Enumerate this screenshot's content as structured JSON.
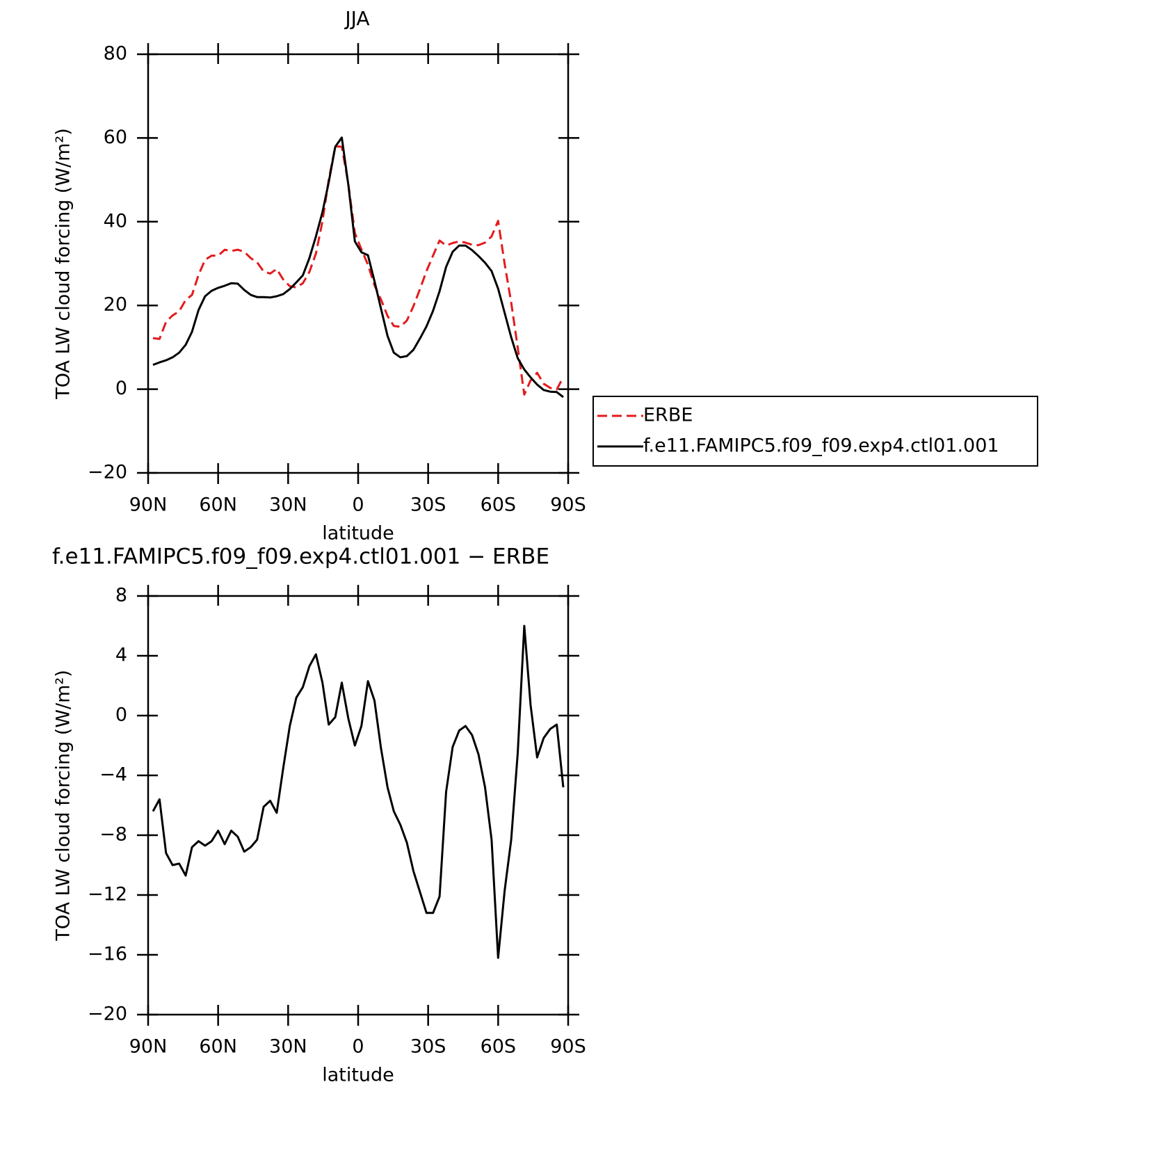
{
  "chart_data": [
    {
      "type": "line",
      "title": "JJA",
      "ylabel": "TOA LW cloud forcing (W/m²)",
      "xlabel": "latitude",
      "x": [
        87.9,
        85.1,
        82.3,
        79.5,
        76.7,
        73.9,
        71.2,
        68.4,
        65.6,
        62.8,
        60.0,
        57.2,
        54.4,
        51.6,
        48.8,
        46.0,
        43.3,
        40.5,
        37.7,
        34.9,
        32.1,
        29.3,
        26.5,
        23.7,
        20.9,
        18.1,
        15.3,
        12.6,
        9.8,
        7.0,
        4.2,
        1.4,
        -1.4,
        -4.2,
        -7.0,
        -9.8,
        -12.6,
        -15.3,
        -18.1,
        -20.9,
        -23.7,
        -26.5,
        -29.3,
        -32.1,
        -34.9,
        -37.7,
        -40.5,
        -43.3,
        -46.0,
        -48.8,
        -51.6,
        -54.4,
        -57.2,
        -60.0,
        -62.8,
        -65.6,
        -68.4,
        -71.2,
        -73.9,
        -76.7,
        -79.5,
        -82.3,
        -85.1,
        -87.9
      ],
      "series": [
        {
          "name": "ERBE",
          "color": "#e41a1c",
          "dash": true,
          "values": [
            12.2,
            12.0,
            16.1,
            17.6,
            18.6,
            21.3,
            22.5,
            27.3,
            30.9,
            31.9,
            31.9,
            33.3,
            33.0,
            33.3,
            32.8,
            31.3,
            30.3,
            28.1,
            27.6,
            28.7,
            26.2,
            24.6,
            24.3,
            25.3,
            28.0,
            32.4,
            40.1,
            50.0,
            58.0,
            57.9,
            49.0,
            37.3,
            33.4,
            29.7,
            24.8,
            21.4,
            17.5,
            15.1,
            14.9,
            16.4,
            19.8,
            23.9,
            28.2,
            31.9,
            35.5,
            34.3,
            34.9,
            35.3,
            35.0,
            34.5,
            34.4,
            35.0,
            36.5,
            40.2,
            29.9,
            20.7,
            9.9,
            -1.3,
            2.1,
            3.9,
            1.3,
            0.3,
            -0.1,
            2.9
          ]
        },
        {
          "name": "f.e11.FAMIPC5.f09_f09.exp4.ctl01.001",
          "color": "#000000",
          "dash": false,
          "values": [
            5.8,
            6.4,
            6.9,
            7.6,
            8.7,
            10.6,
            13.7,
            18.9,
            22.2,
            23.5,
            24.2,
            24.7,
            25.3,
            25.2,
            23.7,
            22.5,
            22.0,
            22.0,
            21.9,
            22.2,
            22.7,
            23.9,
            25.5,
            27.2,
            31.3,
            36.5,
            42.3,
            49.4,
            57.9,
            60.1,
            48.8,
            35.3,
            32.7,
            32.0,
            25.8,
            19.2,
            12.7,
            8.7,
            7.6,
            7.9,
            9.4,
            12.1,
            15.0,
            18.7,
            23.4,
            29.2,
            32.8,
            34.3,
            34.3,
            33.2,
            31.8,
            30.2,
            28.2,
            24.0,
            18.2,
            12.4,
            7.4,
            4.7,
            2.8,
            1.1,
            -0.2,
            -0.6,
            -0.7,
            -1.9
          ]
        }
      ],
      "xlim": [
        90,
        -90
      ],
      "xticks": [
        {
          "value": 90,
          "label": "90N"
        },
        {
          "value": 60,
          "label": "60N"
        },
        {
          "value": 30,
          "label": "30N"
        },
        0,
        {
          "value": -30,
          "label": "30S"
        },
        {
          "value": -60,
          "label": "60S"
        },
        {
          "value": -90,
          "label": "90S"
        }
      ],
      "ylim": [
        -20,
        80
      ],
      "yticks": [
        {
          "value": -20,
          "label": "−20"
        },
        0,
        20,
        40,
        60,
        80
      ],
      "legend": "right"
    },
    {
      "type": "line",
      "title": "f.e11.FAMIPC5.f09_f09.exp4.ctl01.001 − ERBE",
      "ylabel": "TOA LW cloud forcing (W/m²)",
      "xlabel": "latitude",
      "x": [
        87.9,
        85.1,
        82.3,
        79.5,
        76.7,
        73.9,
        71.2,
        68.4,
        65.6,
        62.8,
        60.0,
        57.2,
        54.4,
        51.6,
        48.8,
        46.0,
        43.3,
        40.5,
        37.7,
        34.9,
        32.1,
        29.3,
        26.5,
        23.7,
        20.9,
        18.1,
        15.3,
        12.6,
        9.8,
        7.0,
        4.2,
        1.4,
        -1.4,
        -4.2,
        -7.0,
        -9.8,
        -12.6,
        -15.3,
        -18.1,
        -20.9,
        -23.7,
        -26.5,
        -29.3,
        -32.1,
        -34.9,
        -37.7,
        -40.5,
        -43.3,
        -46.0,
        -48.8,
        -51.6,
        -54.4,
        -57.2,
        -60.0,
        -62.8,
        -65.6,
        -68.4,
        -71.2,
        -73.9,
        -76.7,
        -79.5,
        -82.3,
        -85.1,
        -87.9
      ],
      "series": [
        {
          "color": "#000000",
          "dash": false,
          "values": [
            -6.4,
            -5.6,
            -9.2,
            -10.0,
            -9.9,
            -10.7,
            -8.8,
            -8.4,
            -8.7,
            -8.4,
            -7.7,
            -8.6,
            -7.7,
            -8.1,
            -9.1,
            -8.8,
            -8.3,
            -6.1,
            -5.7,
            -6.5,
            -3.5,
            -0.7,
            1.2,
            1.9,
            3.3,
            4.1,
            2.2,
            -0.6,
            -0.1,
            2.2,
            -0.2,
            -2.0,
            -0.7,
            2.3,
            1.0,
            -2.2,
            -4.8,
            -6.4,
            -7.3,
            -8.5,
            -10.4,
            -11.8,
            -13.2,
            -13.2,
            -12.1,
            -5.1,
            -2.1,
            -1.0,
            -0.7,
            -1.3,
            -2.6,
            -4.8,
            -8.3,
            -16.2,
            -11.7,
            -8.3,
            -2.5,
            6.0,
            0.7,
            -2.8,
            -1.5,
            -0.9,
            -0.6,
            -4.8
          ]
        }
      ],
      "xlim": [
        90,
        -90
      ],
      "xticks": [
        {
          "value": 90,
          "label": "90N"
        },
        {
          "value": 60,
          "label": "60N"
        },
        {
          "value": 30,
          "label": "30N"
        },
        0,
        {
          "value": -30,
          "label": "30S"
        },
        {
          "value": -60,
          "label": "60S"
        },
        {
          "value": -90,
          "label": "90S"
        }
      ],
      "ylim": [
        -20,
        8
      ],
      "yticks": [
        {
          "value": -20,
          "label": "−20"
        },
        {
          "value": -16,
          "label": "−16"
        },
        {
          "value": -12,
          "label": "−12"
        },
        {
          "value": -8,
          "label": "−8"
        },
        {
          "value": -4,
          "label": "−4"
        },
        0,
        4,
        8
      ]
    }
  ]
}
